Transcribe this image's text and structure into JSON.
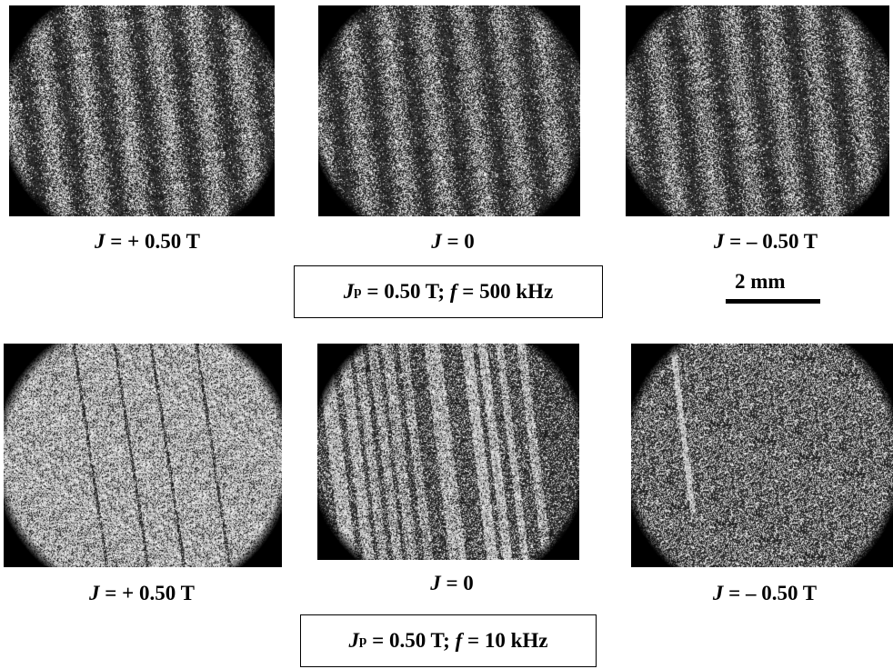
{
  "top_row": {
    "captions": [
      {
        "var": "J",
        "rest": " = + 0.50 T"
      },
      {
        "var": "J",
        "rest": " = 0"
      },
      {
        "var": "J",
        "rest": " = – 0.50 T"
      }
    ],
    "condition": {
      "jp_var": "J",
      "jp_sub": "p",
      "jp_rest": " = 0.50 T; ",
      "f_var": "f",
      "f_rest": " = 500 kHz"
    }
  },
  "bottom_row": {
    "captions": [
      {
        "var": "J",
        "rest": " = + 0.50 T"
      },
      {
        "var": "J",
        "rest": " = 0"
      },
      {
        "var": "J",
        "rest": " = – 0.50 T"
      }
    ],
    "condition": {
      "jp_var": "J",
      "jp_sub": "p",
      "jp_rest": " = 0.50 T; ",
      "f_var": "f",
      "f_rest": " = 10 kHz"
    }
  },
  "scale_bar": {
    "label": "2 mm"
  }
}
